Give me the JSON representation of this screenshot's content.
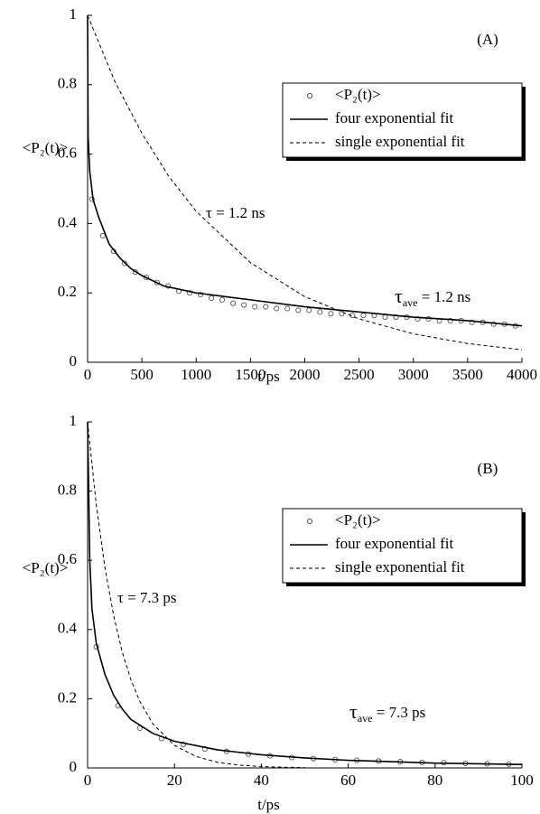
{
  "chart_data": [
    {
      "type": "line",
      "panel_label": "(A)",
      "x_label": "t/ps",
      "y_label": "<P₂(t)>",
      "xlim": [
        0,
        4000
      ],
      "xticks": [
        0,
        500,
        1000,
        1500,
        2000,
        2500,
        3000,
        3500,
        4000
      ],
      "ylim": [
        0,
        1
      ],
      "yticks": [
        0,
        0.2,
        0.4,
        0.6,
        0.8,
        1
      ],
      "series": [
        {
          "name": "<P₂(t)>",
          "color": "#555555",
          "marker": "circle",
          "x": [
            40,
            140,
            240,
            340,
            440,
            540,
            640,
            740,
            840,
            940,
            1040,
            1140,
            1240,
            1340,
            1440,
            1540,
            1640,
            1740,
            1840,
            1940,
            2040,
            2140,
            2240,
            2340,
            2440,
            2540,
            2640,
            2740,
            2840,
            2940,
            3040,
            3140,
            3240,
            3340,
            3440,
            3540,
            3640,
            3740,
            3840,
            3940
          ],
          "values": [
            0.47,
            0.365,
            0.32,
            0.285,
            0.26,
            0.245,
            0.23,
            0.22,
            0.205,
            0.2,
            0.195,
            0.185,
            0.18,
            0.17,
            0.165,
            0.16,
            0.16,
            0.155,
            0.155,
            0.15,
            0.15,
            0.145,
            0.14,
            0.14,
            0.135,
            0.135,
            0.135,
            0.13,
            0.13,
            0.13,
            0.125,
            0.125,
            0.12,
            0.12,
            0.12,
            0.115,
            0.115,
            0.11,
            0.11,
            0.105
          ]
        },
        {
          "name": "four exponential fit",
          "color": "#000000",
          "line_style": "solid",
          "x": [
            0,
            5,
            20,
            50,
            100,
            200,
            300,
            400,
            500,
            700,
            1000,
            1500,
            2000,
            2500,
            3000,
            3500,
            4000
          ],
          "values": [
            1.0,
            0.65,
            0.55,
            0.47,
            0.42,
            0.34,
            0.3,
            0.27,
            0.25,
            0.22,
            0.2,
            0.18,
            0.16,
            0.145,
            0.13,
            0.12,
            0.105
          ]
        },
        {
          "name": "single exponential fit",
          "color": "#000000",
          "line_style": "dashed",
          "x": [
            0,
            250,
            500,
            750,
            1000,
            1500,
            2000,
            2500,
            3000,
            3500,
            4000
          ],
          "values": [
            1.0,
            0.81,
            0.66,
            0.535,
            0.435,
            0.287,
            0.189,
            0.125,
            0.082,
            0.054,
            0.036
          ]
        }
      ],
      "annotations": [
        [
          "τ = 1.2 ns"
        ],
        [
          "τ",
          "ave",
          " = 1.2 ns"
        ]
      ]
    },
    {
      "type": "line",
      "panel_label": "(B)",
      "x_label": "t/ps",
      "y_label": "<P₂(t)>",
      "xlim": [
        0,
        100
      ],
      "xticks": [
        0,
        20,
        40,
        60,
        80,
        100
      ],
      "ylim": [
        0,
        1
      ],
      "yticks": [
        0,
        0.2,
        0.4,
        0.6,
        0.8,
        1
      ],
      "series": [
        {
          "name": "<P₂(t)>",
          "color": "#555555",
          "marker": "circle",
          "x": [
            2,
            7,
            12,
            17,
            22,
            27,
            32,
            37,
            42,
            47,
            52,
            57,
            62,
            67,
            72,
            77,
            82,
            87,
            92,
            97
          ],
          "values": [
            0.35,
            0.18,
            0.115,
            0.085,
            0.068,
            0.055,
            0.048,
            0.04,
            0.035,
            0.03,
            0.027,
            0.024,
            0.022,
            0.02,
            0.018,
            0.016,
            0.015,
            0.013,
            0.012,
            0.011
          ]
        },
        {
          "name": "four exponential fit",
          "color": "#000000",
          "line_style": "solid",
          "x": [
            0,
            0.5,
            1,
            2,
            4,
            6,
            8,
            10,
            15,
            20,
            30,
            40,
            50,
            60,
            70,
            80,
            90,
            100
          ],
          "values": [
            1.0,
            0.6,
            0.46,
            0.36,
            0.27,
            0.21,
            0.17,
            0.14,
            0.1,
            0.077,
            0.052,
            0.038,
            0.029,
            0.022,
            0.018,
            0.014,
            0.012,
            0.01
          ]
        },
        {
          "name": "single exponential fit",
          "color": "#000000",
          "line_style": "dashed",
          "x": [
            0,
            2,
            4,
            6,
            8,
            10,
            12,
            15,
            20,
            25,
            30,
            35,
            40,
            45,
            50
          ],
          "values": [
            1.0,
            0.76,
            0.578,
            0.44,
            0.334,
            0.254,
            0.193,
            0.128,
            0.065,
            0.033,
            0.016,
            0.008,
            0.004,
            0.002,
            0.001
          ]
        }
      ],
      "annotations": [
        [
          "τ = 7.3 ps"
        ],
        [
          "τ",
          "ave",
          " = 7.3 ps"
        ]
      ]
    }
  ]
}
